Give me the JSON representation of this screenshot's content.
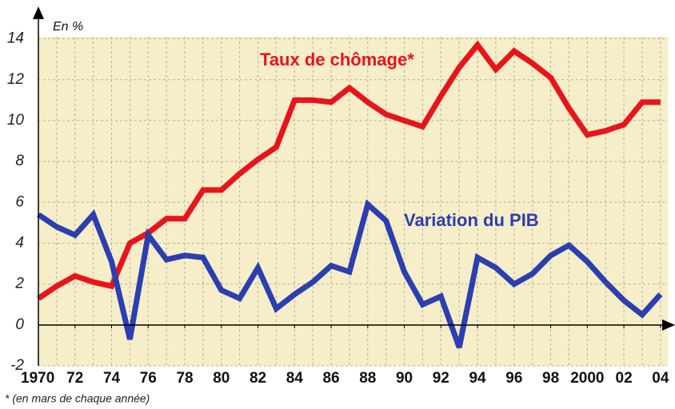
{
  "chart_data": {
    "type": "line",
    "y_axis_label": "En %",
    "footnote": "* (en mars de chaque année)",
    "x": [
      1970,
      1971,
      1972,
      1973,
      1974,
      1975,
      1976,
      1977,
      1978,
      1979,
      1980,
      1981,
      1982,
      1983,
      1984,
      1985,
      1986,
      1987,
      1988,
      1989,
      1990,
      1991,
      1992,
      1993,
      1994,
      1995,
      1996,
      1997,
      1998,
      1999,
      2000,
      2001,
      2002,
      2003,
      2004
    ],
    "series": [
      {
        "name": "Taux de chômage*",
        "color": "#e8141c",
        "values": [
          1.3,
          1.9,
          2.4,
          2.1,
          1.9,
          4.0,
          4.5,
          5.2,
          5.2,
          6.6,
          6.6,
          7.4,
          8.1,
          8.7,
          11.0,
          11.0,
          10.9,
          11.6,
          10.9,
          10.3,
          10.0,
          9.7,
          11.2,
          12.6,
          13.7,
          12.5,
          13.4,
          12.8,
          12.1,
          10.6,
          9.3,
          9.5,
          9.8,
          10.9,
          10.9
        ]
      },
      {
        "name": "Variation du PIB",
        "color": "#2b3fb0",
        "values": [
          5.4,
          4.8,
          4.4,
          5.4,
          3.1,
          -0.7,
          4.4,
          3.2,
          3.4,
          3.3,
          1.7,
          1.3,
          2.8,
          0.8,
          1.5,
          2.1,
          2.9,
          2.6,
          5.9,
          5.1,
          2.6,
          1.0,
          1.4,
          -1.1,
          3.3,
          2.8,
          2.0,
          2.5,
          3.4,
          3.9,
          3.1,
          2.1,
          1.2,
          0.5,
          1.5
        ]
      }
    ],
    "xlim": [
      1970,
      2004.4
    ],
    "xticks": [
      1970,
      {
        "value": 1972,
        "label": "72"
      },
      {
        "value": 1974,
        "label": "74"
      },
      {
        "value": 1976,
        "label": "76"
      },
      {
        "value": 1978,
        "label": "78"
      },
      {
        "value": 1980,
        "label": "80"
      },
      {
        "value": 1982,
        "label": "82"
      },
      {
        "value": 1984,
        "label": "84"
      },
      {
        "value": 1986,
        "label": "86"
      },
      {
        "value": 1988,
        "label": "88"
      },
      {
        "value": 1990,
        "label": "90"
      },
      {
        "value": 1992,
        "label": "92"
      },
      {
        "value": 1994,
        "label": "94"
      },
      {
        "value": 1996,
        "label": "96"
      },
      {
        "value": 1998,
        "label": "98"
      },
      2000,
      {
        "value": 2002,
        "label": "02"
      },
      {
        "value": 2004,
        "label": "04"
      }
    ],
    "ylim": [
      -2,
      14.1
    ],
    "yticks": [
      -2,
      0,
      2,
      4,
      6,
      8,
      10,
      12,
      14
    ],
    "grid": true
  }
}
